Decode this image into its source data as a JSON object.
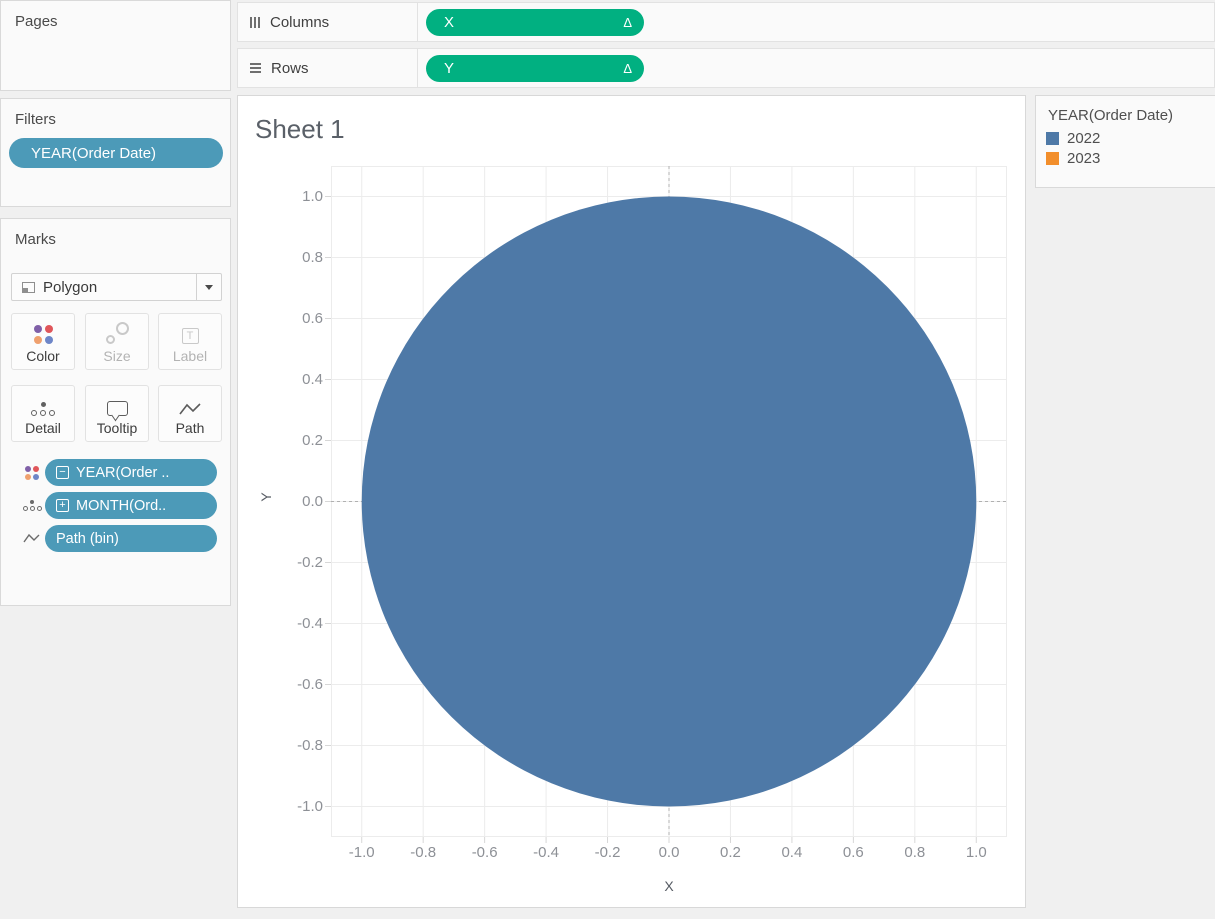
{
  "shelves": {
    "columns": {
      "label": "Columns",
      "pill": {
        "text": "X",
        "badge": "Δ"
      }
    },
    "rows": {
      "label": "Rows",
      "pill": {
        "text": "Y",
        "badge": "Δ"
      }
    }
  },
  "sidebar": {
    "pages": {
      "title": "Pages"
    },
    "filters": {
      "title": "Filters",
      "pill": "YEAR(Order Date)"
    },
    "marks": {
      "title": "Marks",
      "mark_type": "Polygon",
      "buttons": [
        {
          "label": "Color",
          "enabled": true
        },
        {
          "label": "Size",
          "enabled": false
        },
        {
          "label": "Label",
          "enabled": false
        },
        {
          "label": "Detail",
          "enabled": true
        },
        {
          "label": "Tooltip",
          "enabled": true
        },
        {
          "label": "Path",
          "enabled": true
        }
      ],
      "pills": [
        {
          "icon": "color-dots-icon",
          "box": "−",
          "text": "YEAR(Order .."
        },
        {
          "icon": "detail-dots-icon",
          "box": "+",
          "text": "MONTH(Ord.."
        },
        {
          "icon": "path-line-icon",
          "box": "",
          "text": "Path (bin)"
        }
      ]
    }
  },
  "legend": {
    "title": "YEAR(Order Date)",
    "items": [
      {
        "label": "2022",
        "color": "#4e79a7"
      },
      {
        "label": "2023",
        "color": "#f28e2b"
      }
    ]
  },
  "colors": {
    "accent_green": "#01b081",
    "accent_blue": "#4c9ab8",
    "mark_blue": "#4e79a7",
    "grid": "#ececec",
    "zero_line": "#b0b0b0",
    "tick_stub": "#d7d7d7"
  },
  "chart_data": {
    "type": "area",
    "mark": "polygon",
    "title": "Sheet 1",
    "xlabel": "X",
    "ylabel": "Y",
    "xlim": [
      -1.1,
      1.1
    ],
    "ylim": [
      -1.1,
      1.1
    ],
    "x_ticks": [
      "-1.0",
      "-0.8",
      "-0.6",
      "-0.4",
      "-0.2",
      "0.0",
      "0.2",
      "0.4",
      "0.6",
      "0.8",
      "1.0"
    ],
    "y_ticks": [
      "1.0",
      "0.8",
      "0.6",
      "0.4",
      "0.2",
      "0.0",
      "-0.2",
      "-0.4",
      "-0.6",
      "-0.8",
      "-1.0"
    ],
    "grid": true,
    "zero_lines": "dotted",
    "legend_position": "right",
    "series": [
      {
        "name": "2022",
        "shape": "circle",
        "center": [
          0,
          0
        ],
        "radius": 1.0,
        "color": "#4e79a7"
      }
    ]
  }
}
